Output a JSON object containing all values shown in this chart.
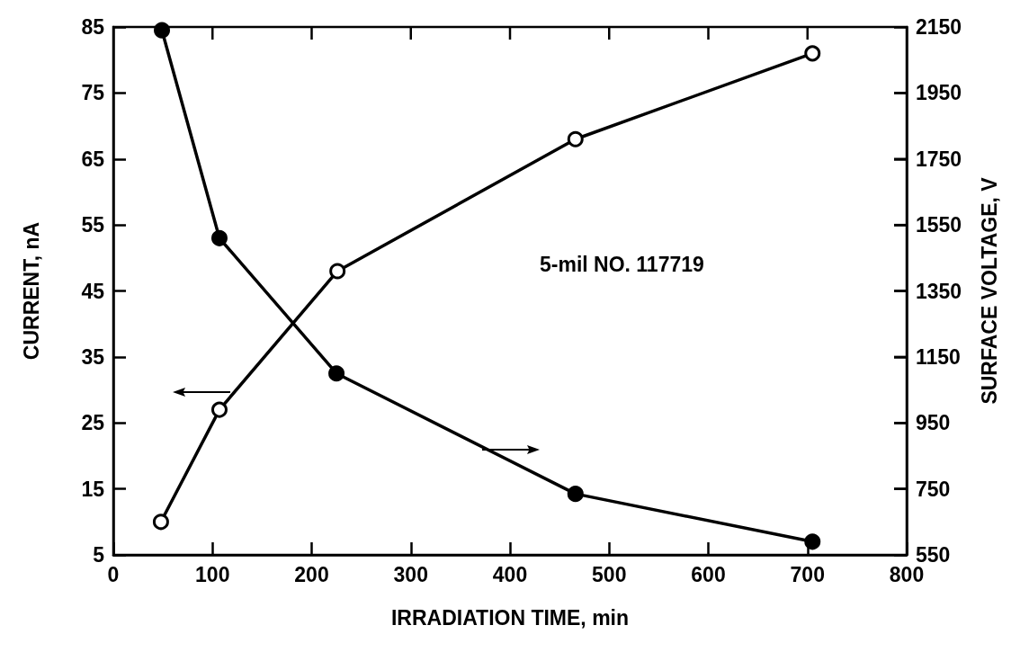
{
  "chart_data": {
    "type": "line",
    "xlabel": "IRRADIATION TIME, min",
    "ylabel": "CURRENT, nA",
    "y2label": "SURFACE VOLTAGE, V",
    "series": [
      {
        "color": "#000000",
        "x": [
          48,
          107,
          226,
          466,
          705
        ],
        "values": [
          10,
          27,
          48,
          68,
          81
        ]
      },
      {
        "color": "#000000",
        "axis": "y2",
        "x": [
          49,
          107,
          225,
          466,
          705
        ],
        "values": [
          2140,
          1510,
          1100,
          735,
          590
        ]
      }
    ],
    "xlim": [
      0,
      800
    ],
    "xticks": [
      0,
      100,
      200,
      300,
      400,
      500,
      600,
      700,
      800
    ],
    "ylim": [
      5,
      85
    ],
    "yticks": [
      5,
      15,
      25,
      35,
      45,
      55,
      65,
      75,
      85
    ],
    "y2lim": [
      550,
      2150
    ],
    "y2ticks": [
      550,
      750,
      950,
      1150,
      1350,
      1550,
      1750,
      1950,
      2150
    ],
    "annotations": [
      "5-mil NO. 117719"
    ],
    "marker": "circle",
    "line_style": "solid"
  }
}
